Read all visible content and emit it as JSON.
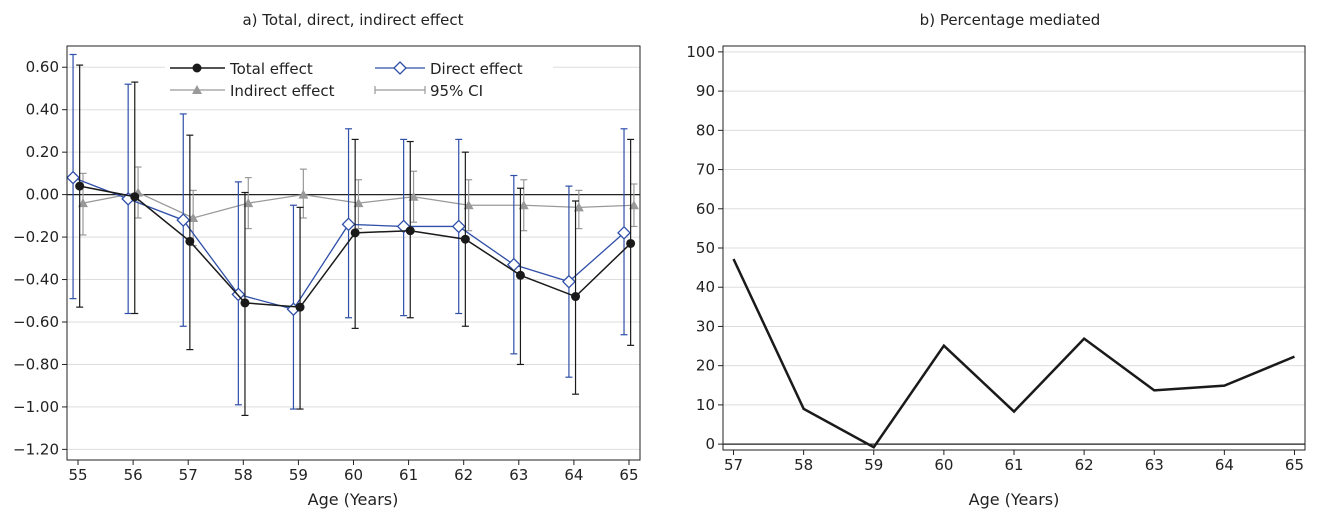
{
  "colors": {
    "total": "#1a1a1a",
    "direct": "#2f4fa8",
    "indirect": "#999999",
    "ci": "#999999",
    "grid": "#dddddd",
    "frame": "#222222",
    "line_b": "#1a1a1a"
  },
  "chart_data": [
    {
      "type": "line",
      "title": "a) Total, direct, indirect effect",
      "xlabel": "Age (Years)",
      "ylabel": "",
      "x": [
        55,
        56,
        57,
        58,
        59,
        60,
        61,
        62,
        63,
        64,
        65
      ],
      "xlim": [
        54.8,
        65.2
      ],
      "ylim": [
        -1.25,
        0.7
      ],
      "yticks": [
        0.6,
        0.4,
        0.2,
        0.0,
        -0.2,
        -0.4,
        -0.6,
        -0.8,
        -1.0,
        -1.2
      ],
      "ytick_labels": [
        "0.60",
        "0.40",
        "0.20",
        "0.00",
        "−0.20",
        "−0.40",
        "−0.60",
        "−0.80",
        "−1.00",
        "−1.20"
      ],
      "xticks": [
        55,
        56,
        57,
        58,
        59,
        60,
        61,
        62,
        63,
        64,
        65
      ],
      "xtick_labels": [
        "55",
        "56",
        "57",
        "58",
        "59",
        "60",
        "61",
        "62",
        "63",
        "64",
        "65"
      ],
      "zero_line": true,
      "grid": "horizontal",
      "legend": {
        "position": "top",
        "items": [
          {
            "key": "total",
            "label": "Total effect"
          },
          {
            "key": "direct",
            "label": "Direct effect"
          },
          {
            "key": "indirect",
            "label": "Indirect effect"
          },
          {
            "key": "ci",
            "label": "95% CI"
          }
        ]
      },
      "series": [
        {
          "key": "total",
          "name": "Total effect",
          "marker": "circle",
          "x_offset": 0.03,
          "values": [
            0.04,
            -0.01,
            -0.22,
            -0.51,
            -0.53,
            -0.18,
            -0.17,
            -0.21,
            -0.38,
            -0.48,
            -0.23
          ],
          "ci_lower": [
            -0.53,
            -0.56,
            -0.73,
            -1.04,
            -1.01,
            -0.63,
            -0.58,
            -0.62,
            -0.8,
            -0.94,
            -0.71
          ],
          "ci_upper": [
            0.61,
            0.53,
            0.28,
            0.01,
            -0.06,
            0.26,
            0.25,
            0.2,
            0.03,
            -0.03,
            0.26
          ]
        },
        {
          "key": "direct",
          "name": "Direct effect",
          "marker": "diamond-open",
          "x_offset": -0.09,
          "values": [
            0.08,
            -0.02,
            -0.12,
            -0.47,
            -0.54,
            -0.14,
            -0.15,
            -0.15,
            -0.33,
            -0.41,
            -0.18
          ],
          "ci_lower": [
            -0.49,
            -0.56,
            -0.62,
            -0.99,
            -1.01,
            -0.58,
            -0.57,
            -0.56,
            -0.75,
            -0.86,
            -0.66
          ],
          "ci_upper": [
            0.66,
            0.52,
            0.38,
            0.06,
            -0.05,
            0.31,
            0.26,
            0.26,
            0.09,
            0.04,
            0.31
          ]
        },
        {
          "key": "indirect",
          "name": "Indirect effect",
          "marker": "triangle",
          "x_offset": 0.09,
          "values": [
            -0.04,
            0.01,
            -0.11,
            -0.04,
            0.0,
            -0.04,
            -0.01,
            -0.05,
            -0.05,
            -0.06,
            -0.05
          ],
          "ci_lower": [
            -0.19,
            -0.11,
            -0.24,
            -0.16,
            -0.11,
            -0.16,
            -0.13,
            -0.17,
            -0.17,
            -0.16,
            -0.15
          ],
          "ci_upper": [
            0.1,
            0.13,
            0.02,
            0.08,
            0.12,
            0.07,
            0.11,
            0.07,
            0.07,
            0.02,
            0.05
          ]
        }
      ]
    },
    {
      "type": "line",
      "title": "b) Percentage mediated",
      "xlabel": "Age (Years)",
      "ylabel": "",
      "x": [
        57,
        58,
        59,
        60,
        61,
        62,
        63,
        64,
        65
      ],
      "xlim": [
        56.85,
        65.15
      ],
      "ylim": [
        -1.5,
        101.5
      ],
      "yticks": [
        100,
        90,
        80,
        70,
        60,
        50,
        40,
        30,
        20,
        10,
        0
      ],
      "ytick_labels": [
        "100",
        "90",
        "80",
        "70",
        "60",
        "50",
        "40",
        "30",
        "20",
        "10",
        "0"
      ],
      "xticks": [
        57,
        58,
        59,
        60,
        61,
        62,
        63,
        64,
        65
      ],
      "xtick_labels": [
        "57",
        "58",
        "59",
        "60",
        "61",
        "62",
        "63",
        "64",
        "65"
      ],
      "zero_line": true,
      "grid": "horizontal",
      "series": [
        {
          "key": "line_b",
          "values": [
            47.2,
            9.0,
            -0.8,
            25.1,
            8.3,
            26.9,
            13.7,
            14.9,
            22.3
          ]
        }
      ]
    }
  ]
}
